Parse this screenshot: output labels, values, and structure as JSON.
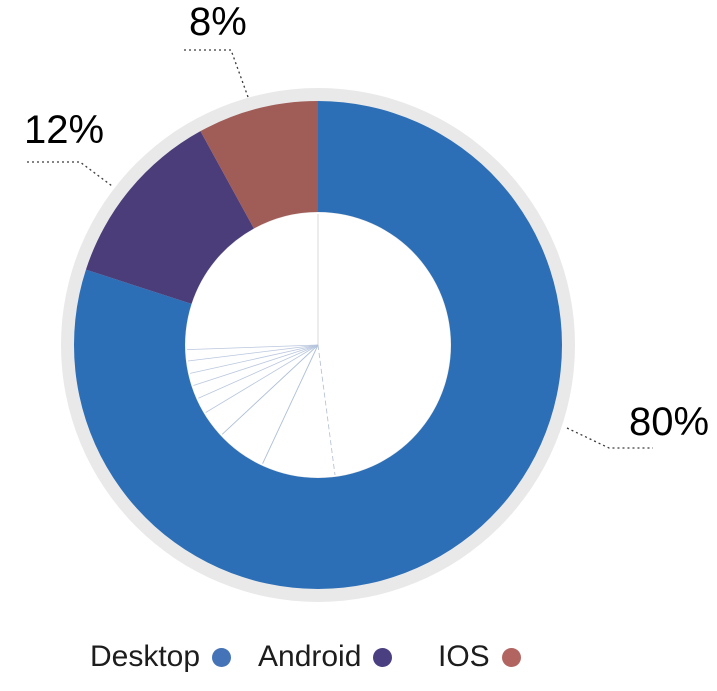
{
  "chart_data": {
    "type": "pie",
    "subtype": "donut",
    "title": "",
    "unit": "%",
    "start_angle_deg": 0,
    "direction": "clockwise",
    "legend_position": "bottom",
    "background_color": "#ffffff",
    "ring_background_color": "#e9e9e9",
    "hole_color": "#ffffff",
    "label_text_color": "#000000",
    "legend_text_color": "#1d1d1d",
    "leader_line_color": "#3a3a3a",
    "series": [
      {
        "name": "Desktop",
        "value": 80,
        "display_label": "80%",
        "color": "#2c6fb7",
        "dot_color": "#4473b8"
      },
      {
        "name": "Android",
        "value": 12,
        "display_label": "12%",
        "color": "#4b3d79",
        "dot_color": "#4a3f80"
      },
      {
        "name": "IOS",
        "value": 8,
        "display_label": "8%",
        "color": "#a05c57",
        "dot_color": "#b26560"
      }
    ]
  }
}
